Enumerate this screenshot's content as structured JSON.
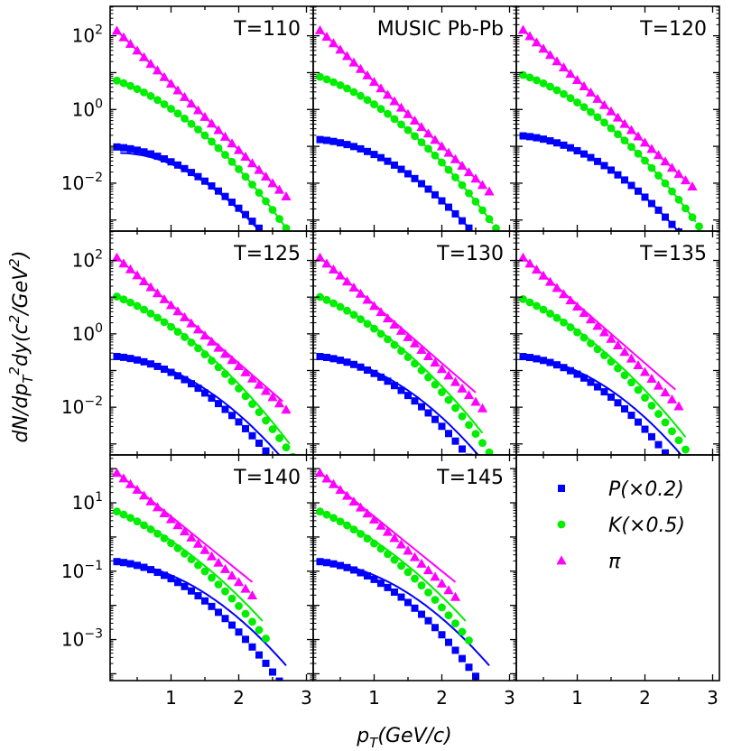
{
  "chart_data": {
    "type": "scatter",
    "ylabel": "dN/dp_T^2 dy(c^2/GeV^2)",
    "xlabel": "p_T(GeV/c)",
    "x_ticks": [
      "1",
      "2",
      "3"
    ],
    "xlim": [
      0.1,
      3.1
    ],
    "colors": {
      "P": "#0000ff",
      "K": "#00ee00",
      "pi": "#ff00ff"
    },
    "legend": {
      "location": "bottom-right panel",
      "entries": [
        {
          "key": "P",
          "marker": "square",
          "label": "P(×0.2)"
        },
        {
          "key": "K",
          "marker": "circle",
          "label": "K(×0.5)"
        },
        {
          "key": "pi",
          "marker": "triangle",
          "label": "π"
        }
      ]
    },
    "panels": [
      {
        "title": "T=110",
        "row": 0,
        "col": 0,
        "ylim_log10": [
          -3.3,
          2.8
        ],
        "y_ticks": [
          {
            "exp": 2,
            "label": "10",
            "sup": "2"
          },
          {
            "exp": 0,
            "label": "10",
            "sup": "0"
          },
          {
            "exp": -2,
            "label": "10",
            "sup": "−2"
          }
        ],
        "points": {
          "P": {
            "x0": 0.2,
            "x1": 3.0,
            "step": 0.1,
            "a": -1.0,
            "b": 0.0,
            "c": -0.42
          },
          "K": {
            "x0": 0.2,
            "x1": 2.8,
            "step": 0.1,
            "a": 0.9,
            "b": -0.5,
            "c": -0.38
          },
          "pi": {
            "x0": 0.2,
            "x1": 2.7,
            "step": 0.1,
            "a": 2.5,
            "b": -1.8,
            "c": 0.0
          }
        },
        "fits": {
          "P": {
            "x0": 0.25,
            "x1": 2.9,
            "a": -1.2,
            "b": 0.2,
            "c": -0.48
          },
          "K": {
            "x0": 0.2,
            "x1": 2.75,
            "a": 0.9,
            "b": -0.5,
            "c": -0.38
          },
          "pi": {
            "x0": 0.2,
            "x1": 2.65,
            "a": 2.5,
            "b": -1.8,
            "c": 0.0
          }
        }
      },
      {
        "title": "MUSIC Pb-Pb",
        "row": 0,
        "col": 1,
        "ylim_log10": [
          -3.3,
          2.8
        ],
        "y_ticks": [],
        "points": {
          "P": {
            "x0": 0.2,
            "x1": 3.0,
            "step": 0.1,
            "a": -0.8,
            "b": 0.0,
            "c": -0.42
          },
          "K": {
            "x0": 0.2,
            "x1": 2.8,
            "step": 0.1,
            "a": 1.0,
            "b": -0.5,
            "c": -0.36
          },
          "pi": {
            "x0": 0.2,
            "x1": 2.7,
            "step": 0.1,
            "a": 2.5,
            "b": -1.75,
            "c": 0.0
          }
        },
        "fits": {
          "P": {
            "x0": 0.2,
            "x1": 2.95,
            "a": -0.8,
            "b": 0.0,
            "c": -0.42
          },
          "K": {
            "x0": 0.2,
            "x1": 2.75,
            "a": 1.0,
            "b": -0.5,
            "c": -0.36
          },
          "pi": {
            "x0": 0.2,
            "x1": 2.65,
            "a": 2.5,
            "b": -1.75,
            "c": 0.0
          }
        }
      },
      {
        "title": "T=120",
        "row": 0,
        "col": 2,
        "ylim_log10": [
          -3.3,
          2.8
        ],
        "y_ticks": [],
        "points": {
          "P": {
            "x0": 0.2,
            "x1": 3.0,
            "step": 0.1,
            "a": -0.7,
            "b": 0.0,
            "c": -0.42
          },
          "K": {
            "x0": 0.2,
            "x1": 2.8,
            "step": 0.1,
            "a": 1.05,
            "b": -0.5,
            "c": -0.36
          },
          "pi": {
            "x0": 0.2,
            "x1": 2.7,
            "step": 0.1,
            "a": 2.5,
            "b": -1.7,
            "c": 0.0
          }
        },
        "fits": {
          "P": {
            "x0": 0.2,
            "x1": 2.95,
            "a": -0.7,
            "b": 0.0,
            "c": -0.42
          },
          "K": {
            "x0": 0.2,
            "x1": 2.75,
            "a": 1.05,
            "b": -0.5,
            "c": -0.36
          },
          "pi": {
            "x0": 0.2,
            "x1": 2.65,
            "a": 2.5,
            "b": -1.7,
            "c": 0.0
          }
        }
      },
      {
        "title": "T=125",
        "row": 1,
        "col": 0,
        "ylim_log10": [
          -3.3,
          2.8
        ],
        "y_ticks": [
          {
            "exp": 2,
            "label": "10",
            "sup": "2"
          },
          {
            "exp": 0,
            "label": "10",
            "sup": "0"
          },
          {
            "exp": -2,
            "label": "10",
            "sup": "−2"
          }
        ],
        "points": {
          "P": {
            "x0": 0.2,
            "x1": 3.0,
            "step": 0.1,
            "a": -0.6,
            "b": 0.0,
            "c": -0.45
          },
          "K": {
            "x0": 0.2,
            "x1": 2.8,
            "step": 0.1,
            "a": 1.15,
            "b": -0.6,
            "c": -0.36
          },
          "pi": {
            "x0": 0.2,
            "x1": 2.7,
            "step": 0.1,
            "a": 2.4,
            "b": -1.6,
            "c": -0.02
          }
        },
        "fits": {
          "P": {
            "x0": 0.2,
            "x1": 2.95,
            "a": -0.6,
            "b": 0.0,
            "c": -0.4
          },
          "K": {
            "x0": 0.2,
            "x1": 2.75,
            "a": 1.15,
            "b": -0.6,
            "c": -0.33
          },
          "pi": {
            "x0": 0.2,
            "x1": 2.65,
            "a": 2.4,
            "b": -1.6,
            "c": 0.0
          }
        }
      },
      {
        "title": "T=130",
        "row": 1,
        "col": 1,
        "ylim_log10": [
          -3.3,
          2.8
        ],
        "y_ticks": [],
        "points": {
          "P": {
            "x0": 0.2,
            "x1": 2.9,
            "step": 0.1,
            "a": -0.6,
            "b": 0.0,
            "c": -0.48
          },
          "K": {
            "x0": 0.2,
            "x1": 2.7,
            "step": 0.1,
            "a": 1.15,
            "b": -0.65,
            "c": -0.36
          },
          "pi": {
            "x0": 0.2,
            "x1": 2.6,
            "step": 0.1,
            "a": 2.4,
            "b": -1.6,
            "c": -0.04
          }
        },
        "fits": {
          "P": {
            "x0": 0.2,
            "x1": 2.8,
            "a": -0.6,
            "b": 0.0,
            "c": -0.42
          },
          "K": {
            "x0": 0.2,
            "x1": 2.6,
            "a": 1.15,
            "b": -0.65,
            "c": -0.32
          },
          "pi": {
            "x0": 0.2,
            "x1": 2.5,
            "a": 2.4,
            "b": -1.6,
            "c": 0.0
          }
        }
      },
      {
        "title": "T=135",
        "row": 1,
        "col": 2,
        "ylim_log10": [
          -3.3,
          2.8
        ],
        "y_ticks": [],
        "points": {
          "P": {
            "x0": 0.2,
            "x1": 2.9,
            "step": 0.1,
            "a": -0.6,
            "b": 0.0,
            "c": -0.5
          },
          "K": {
            "x0": 0.2,
            "x1": 2.7,
            "step": 0.1,
            "a": 1.1,
            "b": -0.7,
            "c": -0.36
          },
          "pi": {
            "x0": 0.2,
            "x1": 2.5,
            "step": 0.1,
            "a": 2.4,
            "b": -1.6,
            "c": -0.06
          }
        },
        "fits": {
          "P": {
            "x0": 0.2,
            "x1": 2.8,
            "a": -0.6,
            "b": 0.0,
            "c": -0.42
          },
          "K": {
            "x0": 0.2,
            "x1": 2.6,
            "a": 1.1,
            "b": -0.7,
            "c": -0.31
          },
          "pi": {
            "x0": 0.2,
            "x1": 2.45,
            "a": 2.4,
            "b": -1.6,
            "c": 0.0
          }
        }
      },
      {
        "title": "T=140",
        "row": 2,
        "col": 0,
        "ylim_log10": [
          -4.2,
          2.4
        ],
        "y_ticks": [
          {
            "exp": 1,
            "label": "10",
            "sup": "1"
          },
          {
            "exp": -1,
            "label": "10",
            "sup": "−1"
          },
          {
            "exp": -3,
            "label": "10",
            "sup": "−3"
          }
        ],
        "points": {
          "P": {
            "x0": 0.2,
            "x1": 2.7,
            "step": 0.1,
            "a": -0.7,
            "b": 0.0,
            "c": -0.52
          },
          "K": {
            "x0": 0.2,
            "x1": 2.4,
            "step": 0.1,
            "a": 0.9,
            "b": -0.7,
            "c": -0.38
          },
          "pi": {
            "x0": 0.2,
            "x1": 2.2,
            "step": 0.1,
            "a": 2.2,
            "b": -1.6,
            "c": -0.08
          }
        },
        "fits": {
          "P": {
            "x0": 0.2,
            "x1": 2.7,
            "a": -0.7,
            "b": 0.0,
            "c": -0.42
          },
          "K": {
            "x0": 0.2,
            "x1": 2.35,
            "a": 0.9,
            "b": -0.7,
            "c": -0.31
          },
          "pi": {
            "x0": 0.2,
            "x1": 2.2,
            "a": 2.2,
            "b": -1.6,
            "c": 0.0
          }
        }
      },
      {
        "title": "T=145",
        "row": 2,
        "col": 1,
        "ylim_log10": [
          -4.2,
          2.4
        ],
        "y_ticks": [],
        "points": {
          "P": {
            "x0": 0.2,
            "x1": 2.7,
            "step": 0.1,
            "a": -0.7,
            "b": 0.0,
            "c": -0.54
          },
          "K": {
            "x0": 0.2,
            "x1": 2.4,
            "step": 0.1,
            "a": 0.9,
            "b": -0.7,
            "c": -0.39
          },
          "pi": {
            "x0": 0.2,
            "x1": 2.2,
            "step": 0.1,
            "a": 2.2,
            "b": -1.6,
            "c": -0.09
          }
        },
        "fits": {
          "P": {
            "x0": 0.2,
            "x1": 2.7,
            "a": -0.7,
            "b": 0.0,
            "c": -0.42
          },
          "K": {
            "x0": 0.2,
            "x1": 2.35,
            "a": 0.9,
            "b": -0.7,
            "c": -0.31
          },
          "pi": {
            "x0": 0.2,
            "x1": 2.2,
            "a": 2.2,
            "b": -1.6,
            "c": 0.0
          }
        }
      }
    ]
  }
}
